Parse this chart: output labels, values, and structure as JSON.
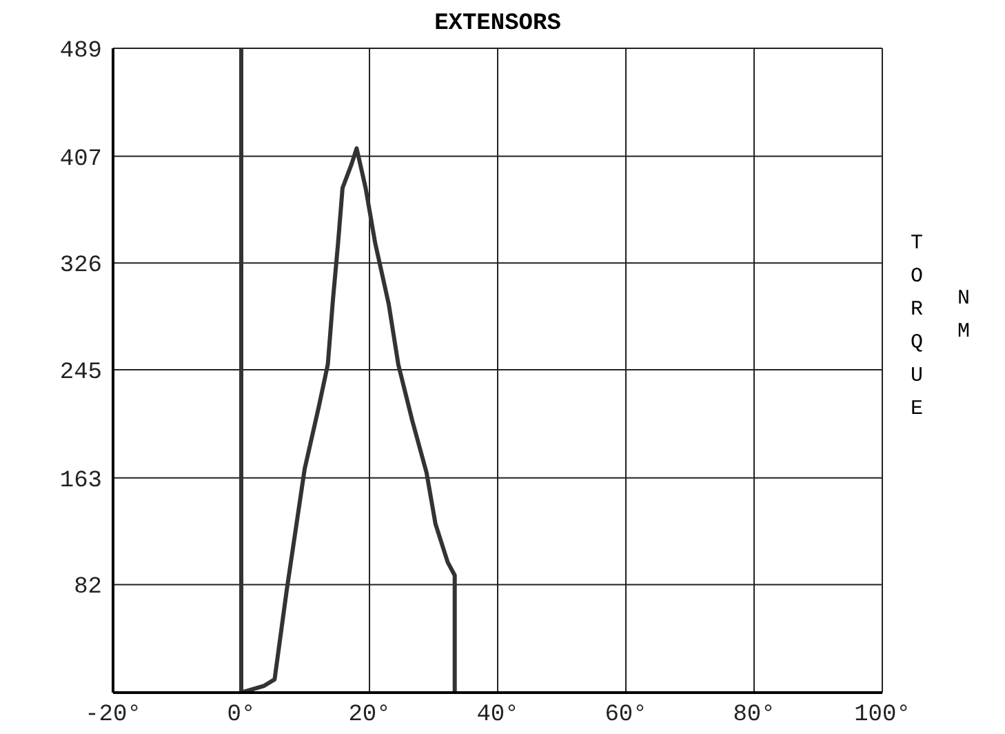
{
  "chart_data": {
    "type": "line",
    "title": "EXTENSORS",
    "ylabel": "TORQUE NM",
    "x": [
      0,
      0,
      3.5,
      5.2,
      7.1,
      9.9,
      12.1,
      13.5,
      14.3,
      15.1,
      15.8,
      17.2,
      18,
      19.4,
      20.9,
      23,
      24.5,
      26.7,
      28.9,
      30.3,
      32.2,
      33.3,
      33.3
    ],
    "series": [
      {
        "color": "#333333",
        "values": [
          489,
          0,
          5,
          10,
          78,
          170,
          217,
          249,
          298,
          341,
          383,
          401,
          413,
          383,
          341,
          295,
          249,
          206,
          167,
          128,
          99,
          89,
          0
        ]
      }
    ],
    "xlim": [
      -20,
      100
    ],
    "xticks": [
      {
        "value": -20,
        "label": "-20°"
      },
      {
        "value": 0,
        "label": "0°"
      },
      {
        "value": 20,
        "label": "20°"
      },
      {
        "value": 40,
        "label": "40°"
      },
      {
        "value": 60,
        "label": "60°"
      },
      {
        "value": 80,
        "label": "80°"
      },
      {
        "value": 100,
        "label": "100°"
      }
    ],
    "ylim": [
      0,
      489
    ],
    "yticks": [
      82,
      163,
      245,
      326,
      407,
      489
    ],
    "grid": true,
    "marker": "none",
    "line_style": "solid"
  }
}
